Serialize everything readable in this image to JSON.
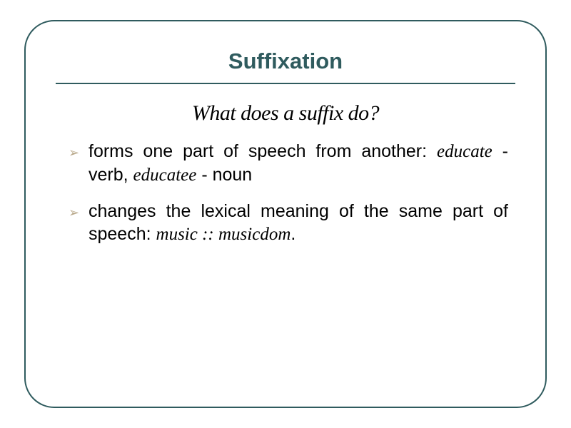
{
  "slide": {
    "title": "Suffixation",
    "subtitle": "What does a suffix do?",
    "border_color": "#2f5b5e",
    "title_color": "#2f5b5e",
    "bullet_marker_color": "#b8a88a",
    "background": "#ffffff",
    "bullets": [
      {
        "pre1": "forms one part of speech from another: ",
        "italic1": "educate",
        "mid": " - verb, ",
        "italic2": "educatee",
        "post": " - noun"
      },
      {
        "pre1": "changes the lexical meaning of the same part of speech: ",
        "italic1": "music :: musicdom",
        "mid": ".",
        "italic2": "",
        "post": ""
      }
    ]
  }
}
